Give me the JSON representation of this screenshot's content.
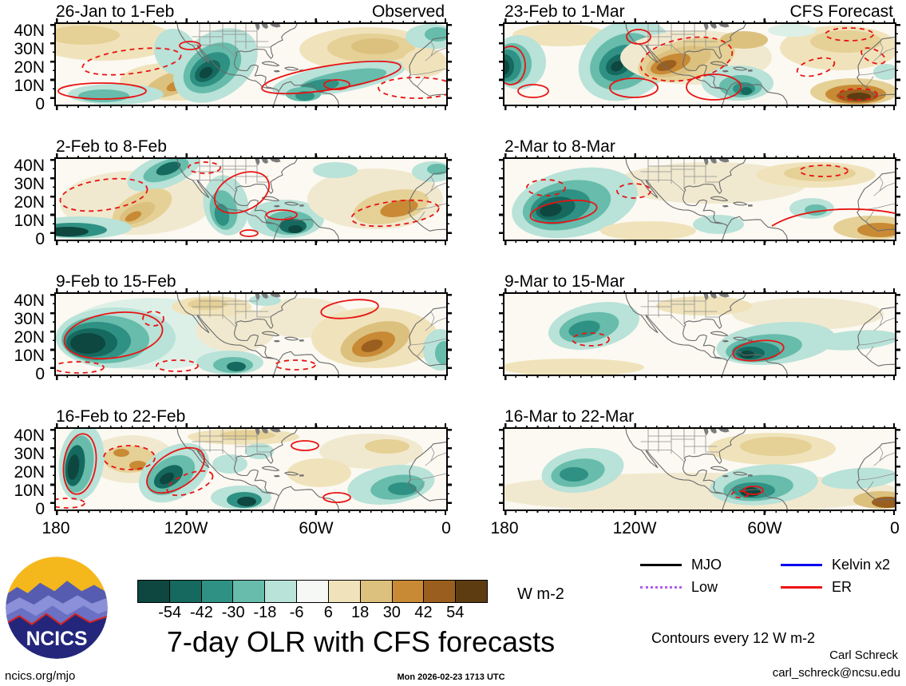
{
  "panels": [
    {
      "title": "26-Jan to 1-Feb",
      "subtitle": "Observed"
    },
    {
      "title": "23-Feb to 1-Mar",
      "subtitle": "CFS Forecast"
    },
    {
      "title": "2-Feb to 8-Feb",
      "subtitle": ""
    },
    {
      "title": "2-Mar to 8-Mar",
      "subtitle": ""
    },
    {
      "title": "9-Feb to 15-Feb",
      "subtitle": ""
    },
    {
      "title": "9-Mar to 15-Mar",
      "subtitle": ""
    },
    {
      "title": "16-Feb to 22-Feb",
      "subtitle": ""
    },
    {
      "title": "16-Mar to 22-Mar",
      "subtitle": ""
    }
  ],
  "axes": {
    "y_ticks": [
      "40N",
      "30N",
      "20N",
      "10N",
      "0"
    ],
    "x_ticks": [
      "180",
      "120W",
      "60W",
      "0"
    ]
  },
  "colorbar": {
    "colors": [
      "#0d473f",
      "#15695e",
      "#2f9183",
      "#67bcab",
      "#b9e2d8",
      "#f6f8f5",
      "#f0e3bb",
      "#dcc07e",
      "#c98a35",
      "#9a5f1e",
      "#5e3c12"
    ],
    "tick_labels": [
      "-54",
      "-42",
      "-30",
      "-18",
      "-6",
      "6",
      "18",
      "30",
      "42",
      "54"
    ],
    "unit": "W m-2"
  },
  "legend": {
    "items": [
      {
        "label": "MJO",
        "color": "#000000",
        "style": "solid"
      },
      {
        "label": "Kelvin x2",
        "color": "#0000ee",
        "style": "solid"
      },
      {
        "label": "Low",
        "color": "#b05cf0",
        "style": "dotted"
      },
      {
        "label": "ER",
        "color": "#ee1111",
        "style": "solid"
      }
    ],
    "note": "Contours every 12 W m-2"
  },
  "title": "7-day OLR with CFS forecasts",
  "footer": {
    "site": "ncics.org/mjo",
    "timestamp": "Mon 2026-02-23 1713 UTC",
    "author": "Carl Schreck",
    "email": "carl_schreck@ncsu.edu"
  },
  "logo": {
    "text": "NCICS"
  },
  "chart_data": {
    "type": "heatmap",
    "title": "7-day OLR with CFS forecasts",
    "description": "Eight map panels of 7-day average OLR anomalies (shading) with wave contours; left column observed weeks, right column CFS forecast weeks; domain 180W-0, 0-40N over North/Central America, northern South America and West Africa",
    "columns": [
      "Observed",
      "CFS Forecast"
    ],
    "panels": [
      {
        "column": "Observed",
        "week": "26-Jan to 1-Feb"
      },
      {
        "column": "CFS Forecast",
        "week": "23-Feb to 1-Mar"
      },
      {
        "column": "Observed",
        "week": "2-Feb to 8-Feb"
      },
      {
        "column": "CFS Forecast",
        "week": "2-Mar to 8-Mar"
      },
      {
        "column": "Observed",
        "week": "9-Feb to 15-Feb"
      },
      {
        "column": "CFS Forecast",
        "week": "9-Mar to 15-Mar"
      },
      {
        "column": "Observed",
        "week": "16-Feb to 22-Feb"
      },
      {
        "column": "CFS Forecast",
        "week": "16-Mar to 22-Mar"
      }
    ],
    "x_axis": {
      "ticks": [
        "180",
        "120W",
        "60W",
        "0"
      ],
      "range_lon_deg": [
        -180,
        0
      ]
    },
    "y_axis": {
      "ticks": [
        "40N",
        "30N",
        "20N",
        "10N",
        "0"
      ],
      "range_lat_deg": [
        0,
        44
      ]
    },
    "colorbar_levels": [
      -54,
      -42,
      -30,
      -18,
      -6,
      6,
      18,
      30,
      42,
      54
    ],
    "colorbar_unit": "W m-2",
    "contour_interval_wm2": 12,
    "contour_series": [
      "MJO",
      "Kelvin x2",
      "Low",
      "ER"
    ],
    "legend_position": "bottom-right",
    "shading_negative_color": "teal (enhanced convection)",
    "shading_positive_color": "brown (suppressed convection)"
  }
}
